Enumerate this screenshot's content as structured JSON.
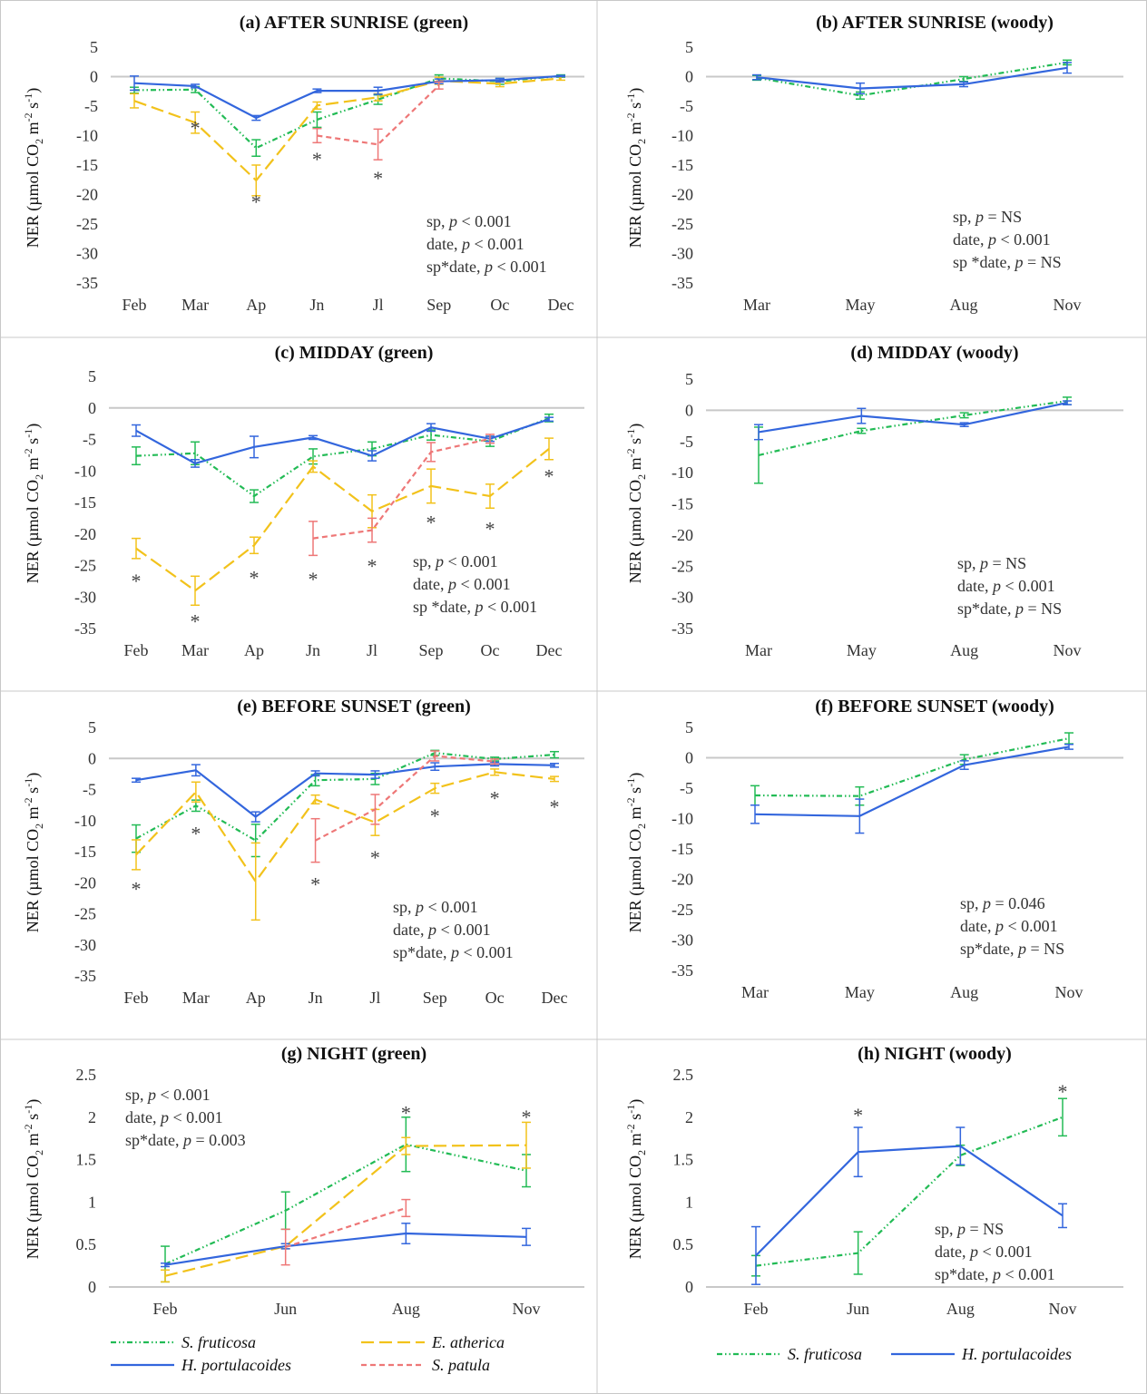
{
  "colors": {
    "S. fruticosa": "#22bb55",
    "E. atherica": "#f2c21b",
    "H. portulacoides": "#3366dd",
    "S. patula": "#ee7777",
    "axis": "#c8c8c8",
    "border": "#c8c8c8"
  },
  "legend_green": [
    "S. fruticosa",
    "E. atherica",
    "H. portulacoides",
    "S. patula"
  ],
  "legend_woody": [
    "S. fruticosa",
    "H. portulacoides"
  ],
  "chart_data": [
    {
      "id": "a",
      "type": "line",
      "title": "(a) AFTER SUNRISE (green)",
      "ylabel": "NER (µmol CO2 m-2 s-1)",
      "categories": [
        "Feb",
        "Mar",
        "Ap",
        "Jn",
        "Jl",
        "Sep",
        "Oc",
        "Dec"
      ],
      "ylim": [
        -35,
        5
      ],
      "yticks": [
        5,
        0,
        -5,
        -10,
        -15,
        -20,
        -25,
        -30,
        -35
      ],
      "series": [
        {
          "name": "S. fruticosa",
          "values": [
            -2.3,
            -2.2,
            -12.1,
            -7.3,
            -3.9,
            -0.3,
            -0.8,
            0.1
          ],
          "errors": [
            0.5,
            0.5,
            1.4,
            1.3,
            0.8,
            0.6,
            0.5,
            0.2
          ]
        },
        {
          "name": "E. atherica",
          "values": [
            -4.1,
            -7.8,
            -17.6,
            -4.9,
            -3.5,
            -0.7,
            -1.2,
            -0.3
          ],
          "errors": [
            1.2,
            1.8,
            2.6,
            0.6,
            0.6,
            0.6,
            0.5,
            0.3
          ]
        },
        {
          "name": "H. portulacoides",
          "values": [
            -1.1,
            -1.6,
            -7.0,
            -2.4,
            -2.4,
            -0.8,
            -0.6,
            0.1
          ],
          "errors": [
            1.2,
            0.3,
            0.4,
            0.3,
            0.6,
            0.4,
            0.3,
            0.1
          ]
        },
        {
          "name": "S. patula",
          "values": [
            null,
            null,
            null,
            -10.0,
            -11.5,
            -1.5,
            null,
            null
          ],
          "errors": [
            null,
            null,
            null,
            1.2,
            2.6,
            0.6,
            null,
            null
          ]
        }
      ],
      "stars": [
        {
          "x": 1,
          "y": -8.0
        },
        {
          "x": 2,
          "y": -20.5
        },
        {
          "x": 3,
          "y": -13.3
        },
        {
          "x": 4,
          "y": -16.5
        }
      ],
      "stats": [
        {
          "pre": "sp, ",
          "p": "p",
          "post": " < 0.001"
        },
        {
          "pre": "date, ",
          "p": "p",
          "post": " < 0.001"
        },
        {
          "pre": "sp*date, ",
          "p": "p",
          "post": " < 0.001"
        }
      ]
    },
    {
      "id": "b",
      "type": "line",
      "title": "(b) AFTER SUNRISE (woody)",
      "ylabel": "NER (µmol CO2 m-2 s-1)",
      "categories": [
        "Mar",
        "May",
        "Aug",
        "Nov"
      ],
      "ylim": [
        -35,
        5
      ],
      "yticks": [
        5,
        0,
        -5,
        -10,
        -15,
        -20,
        -25,
        -30,
        -35
      ],
      "series": [
        {
          "name": "S. fruticosa",
          "values": [
            -0.2,
            -3.2,
            -0.4,
            2.4
          ],
          "errors": [
            0.4,
            0.6,
            0.4,
            0.4
          ]
        },
        {
          "name": "H. portulacoides",
          "values": [
            -0.1,
            -2.0,
            -1.3,
            1.5
          ],
          "errors": [
            0.4,
            0.9,
            0.4,
            0.9
          ]
        }
      ],
      "stars": [],
      "stats": [
        {
          "pre": "sp, ",
          "p": "p",
          "post": " = NS"
        },
        {
          "pre": "date, ",
          "p": "p",
          "post": " < 0.001"
        },
        {
          "pre": "sp *date, ",
          "p": "p",
          "post": " = NS"
        }
      ]
    },
    {
      "id": "c",
      "type": "line",
      "title": "(c) MIDDAY (green)",
      "ylabel": "NER (µmol CO2 m-2 s-1)",
      "categories": [
        "Feb",
        "Mar",
        "Ap",
        "Jn",
        "Jl",
        "Sep",
        "Oc",
        "Dec"
      ],
      "ylim": [
        -35,
        5
      ],
      "yticks": [
        5,
        0,
        -5,
        -10,
        -15,
        -20,
        -25,
        -30,
        -35
      ],
      "series": [
        {
          "name": "S. fruticosa",
          "values": [
            -7.6,
            -7.2,
            -14.0,
            -7.7,
            -6.5,
            -4.3,
            -5.3,
            -1.6
          ],
          "errors": [
            1.4,
            1.8,
            1.0,
            1.2,
            1.1,
            0.8,
            0.8,
            0.6
          ]
        },
        {
          "name": "E. atherica",
          "values": [
            -22.3,
            -29.0,
            -21.8,
            -9.3,
            -16.4,
            -12.4,
            -14.0,
            -6.5
          ],
          "errors": [
            1.6,
            2.3,
            1.3,
            0.9,
            2.6,
            2.7,
            1.9,
            1.7
          ]
        },
        {
          "name": "H. portulacoides",
          "values": [
            -3.6,
            -8.8,
            -6.2,
            -4.7,
            -7.6,
            -3.1,
            -4.9,
            -1.8
          ],
          "errors": [
            0.9,
            0.6,
            1.7,
            0.3,
            0.8,
            0.6,
            0.4,
            0.3
          ]
        },
        {
          "name": "S. patula",
          "values": [
            null,
            null,
            null,
            -20.7,
            -19.4,
            -7.0,
            -4.9,
            null
          ],
          "errors": [
            null,
            null,
            null,
            2.7,
            1.9,
            1.5,
            0.7,
            null
          ]
        }
      ],
      "stars": [
        {
          "x": 0,
          "y": -26.8
        },
        {
          "x": 1,
          "y": -33.2
        },
        {
          "x": 2,
          "y": -26.3
        },
        {
          "x": 3,
          "y": -26.5
        },
        {
          "x": 4,
          "y": -24.4
        },
        {
          "x": 5,
          "y": -17.5
        },
        {
          "x": 6,
          "y": -18.5
        },
        {
          "x": 7,
          "y": -10.2
        }
      ],
      "stats": [
        {
          "pre": "sp, ",
          "p": "p",
          "post": " < 0.001"
        },
        {
          "pre": "date, ",
          "p": "p",
          "post": " < 0.001"
        },
        {
          "pre": "sp *date, ",
          "p": "p",
          "post": " < 0.001"
        }
      ]
    },
    {
      "id": "d",
      "type": "line",
      "title": "(d) MIDDAY (woody)",
      "ylabel": "NER (µmol CO2 m-2 s-1)",
      "categories": [
        "Mar",
        "May",
        "Aug",
        "Nov"
      ],
      "ylim": [
        -35,
        5
      ],
      "yticks": [
        5,
        0,
        -5,
        -10,
        -15,
        -20,
        -25,
        -30,
        -35
      ],
      "series": [
        {
          "name": "S. fruticosa",
          "values": [
            -7.2,
            -3.3,
            -0.8,
            1.5
          ],
          "errors": [
            4.5,
            0.4,
            0.4,
            0.6
          ]
        },
        {
          "name": "H. portulacoides",
          "values": [
            -3.5,
            -0.9,
            -2.3,
            1.2
          ],
          "errors": [
            1.2,
            1.2,
            0.3,
            0.3
          ]
        }
      ],
      "stars": [],
      "stats": [
        {
          "pre": "sp, ",
          "p": "p",
          "post": " = NS"
        },
        {
          "pre": "date, ",
          "p": "p",
          "post": " < 0.001"
        },
        {
          "pre": "sp*date, ",
          "p": "p",
          "post": " = NS"
        }
      ]
    },
    {
      "id": "e",
      "type": "line",
      "title": "(e) BEFORE SUNSET (green)",
      "ylabel": "NER (µmol CO2 m-2 s-1)",
      "categories": [
        "Feb",
        "Mar",
        "Ap",
        "Jn",
        "Jl",
        "Sep",
        "Oc",
        "Dec"
      ],
      "ylim": [
        -35,
        5
      ],
      "yticks": [
        5,
        0,
        -5,
        -10,
        -15,
        -20,
        -25,
        -30,
        -35
      ],
      "series": [
        {
          "name": "S. fruticosa",
          "values": [
            -12.9,
            -7.6,
            -13.2,
            -3.5,
            -3.3,
            0.9,
            -0.1,
            0.6
          ],
          "errors": [
            2.2,
            0.9,
            2.6,
            0.9,
            0.9,
            0.4,
            0.3,
            0.5
          ]
        },
        {
          "name": "E. atherica",
          "values": [
            -15.5,
            -5.4,
            -19.8,
            -6.6,
            -10.3,
            -4.8,
            -2.2,
            -3.3
          ],
          "errors": [
            2.4,
            1.6,
            6.2,
            0.7,
            2.1,
            0.8,
            0.5,
            0.4
          ]
        },
        {
          "name": "H. portulacoides",
          "values": [
            -3.5,
            -1.9,
            -9.4,
            -2.4,
            -2.6,
            -1.3,
            -0.9,
            -1.1
          ],
          "errors": [
            0.3,
            0.9,
            0.8,
            0.4,
            0.6,
            0.6,
            0.3,
            0.3
          ]
        },
        {
          "name": "S. patula",
          "values": [
            null,
            null,
            null,
            -13.2,
            -8.2,
            0.4,
            -0.5,
            null
          ],
          "errors": [
            null,
            null,
            null,
            3.5,
            2.4,
            0.8,
            0.4,
            null
          ]
        }
      ],
      "stars": [
        {
          "x": 0,
          "y": -20.3
        },
        {
          "x": 1,
          "y": -11.4
        },
        {
          "x": 3,
          "y": -19.6
        },
        {
          "x": 4,
          "y": -15.3
        },
        {
          "x": 5,
          "y": -8.6
        },
        {
          "x": 6,
          "y": -5.7
        },
        {
          "x": 7,
          "y": -7.1
        }
      ],
      "stats": [
        {
          "pre": "sp, ",
          "p": "p",
          "post": " < 0.001"
        },
        {
          "pre": "date, ",
          "p": "p",
          "post": " < 0.001"
        },
        {
          "pre": "sp*date, ",
          "p": "p",
          "post": " < 0.001"
        }
      ]
    },
    {
      "id": "f",
      "type": "line",
      "title": "(f) BEFORE SUNSET (woody)",
      "ylabel": "NER (µmol CO2 m-2 s-1)",
      "categories": [
        "Mar",
        "May",
        "Aug",
        "Nov"
      ],
      "ylim": [
        -35,
        5
      ],
      "yticks": [
        5,
        0,
        -5,
        -10,
        -15,
        -20,
        -25,
        -30,
        -35
      ],
      "series": [
        {
          "name": "S. fruticosa",
          "values": [
            -6.2,
            -6.3,
            -0.3,
            3.2
          ],
          "errors": [
            1.6,
            1.5,
            0.8,
            0.9
          ]
        },
        {
          "name": "H. portulacoides",
          "values": [
            -9.3,
            -9.6,
            -1.2,
            1.8
          ],
          "errors": [
            1.5,
            2.8,
            0.7,
            0.4
          ]
        }
      ],
      "stars": [],
      "stats": [
        {
          "pre": "sp, ",
          "p": "p",
          "post": " = 0.046"
        },
        {
          "pre": "date, ",
          "p": "p",
          "post": " < 0.001"
        },
        {
          "pre": "sp*date, ",
          "p": "p",
          "post": " = NS"
        }
      ]
    },
    {
      "id": "g",
      "type": "line",
      "title": "(g) NIGHT (green)",
      "ylabel": "NER (µmol CO2 m-2 s-1)",
      "categories": [
        "Feb",
        "Jun",
        "Aug",
        "Nov"
      ],
      "ylim": [
        0,
        2.5
      ],
      "yticks": [
        2.5,
        2,
        1.5,
        1,
        0.5,
        0
      ],
      "series": [
        {
          "name": "S. fruticosa",
          "values": [
            0.27,
            0.9,
            1.68,
            1.37
          ],
          "errors": [
            0.21,
            0.22,
            0.32,
            0.19
          ]
        },
        {
          "name": "E. atherica",
          "values": [
            0.13,
            0.48,
            1.66,
            1.67
          ],
          "errors": [
            0.07,
            0.03,
            0.1,
            0.27
          ]
        },
        {
          "name": "H. portulacoides",
          "values": [
            0.26,
            0.48,
            0.63,
            0.59
          ],
          "errors": [
            0.02,
            0.03,
            0.12,
            0.1
          ]
        },
        {
          "name": "S. patula",
          "values": [
            null,
            0.47,
            0.93,
            null
          ],
          "errors": [
            null,
            0.21,
            0.1,
            null
          ]
        }
      ],
      "stars": [
        {
          "x": 2,
          "y": 2.1
        },
        {
          "x": 3,
          "y": 2.05
        }
      ],
      "stats": [
        {
          "pre": "sp, ",
          "p": "p",
          "post": " < 0.001"
        },
        {
          "pre": "date, ",
          "p": "p",
          "post": " < 0.001"
        },
        {
          "pre": "sp*date, ",
          "p": "p",
          "post": " = 0.003"
        }
      ]
    },
    {
      "id": "h",
      "type": "line",
      "title": "(h) NIGHT (woody)",
      "ylabel": "NER (µmol CO2 m-2 s-1)",
      "categories": [
        "Feb",
        "Jun",
        "Aug",
        "Nov"
      ],
      "ylim": [
        0,
        2.5
      ],
      "yticks": [
        2.5,
        2,
        1.5,
        1,
        0.5,
        0
      ],
      "series": [
        {
          "name": "S. fruticosa",
          "values": [
            0.25,
            0.4,
            1.55,
            2.0
          ],
          "errors": [
            0.12,
            0.25,
            0.12,
            0.22
          ]
        },
        {
          "name": "H. portulacoides",
          "values": [
            0.37,
            1.59,
            1.66,
            0.84
          ],
          "errors": [
            0.34,
            0.29,
            0.22,
            0.14
          ]
        }
      ],
      "stars": [
        {
          "x": 1,
          "y": 2.07
        },
        {
          "x": 3,
          "y": 2.35
        }
      ],
      "stats": [
        {
          "pre": "sp, ",
          "p": "p",
          "post": " = NS"
        },
        {
          "pre": "date, ",
          "p": "p",
          "post": " < 0.001"
        },
        {
          "pre": "sp*date, ",
          "p": "p",
          "post": " < 0.001"
        }
      ]
    }
  ]
}
